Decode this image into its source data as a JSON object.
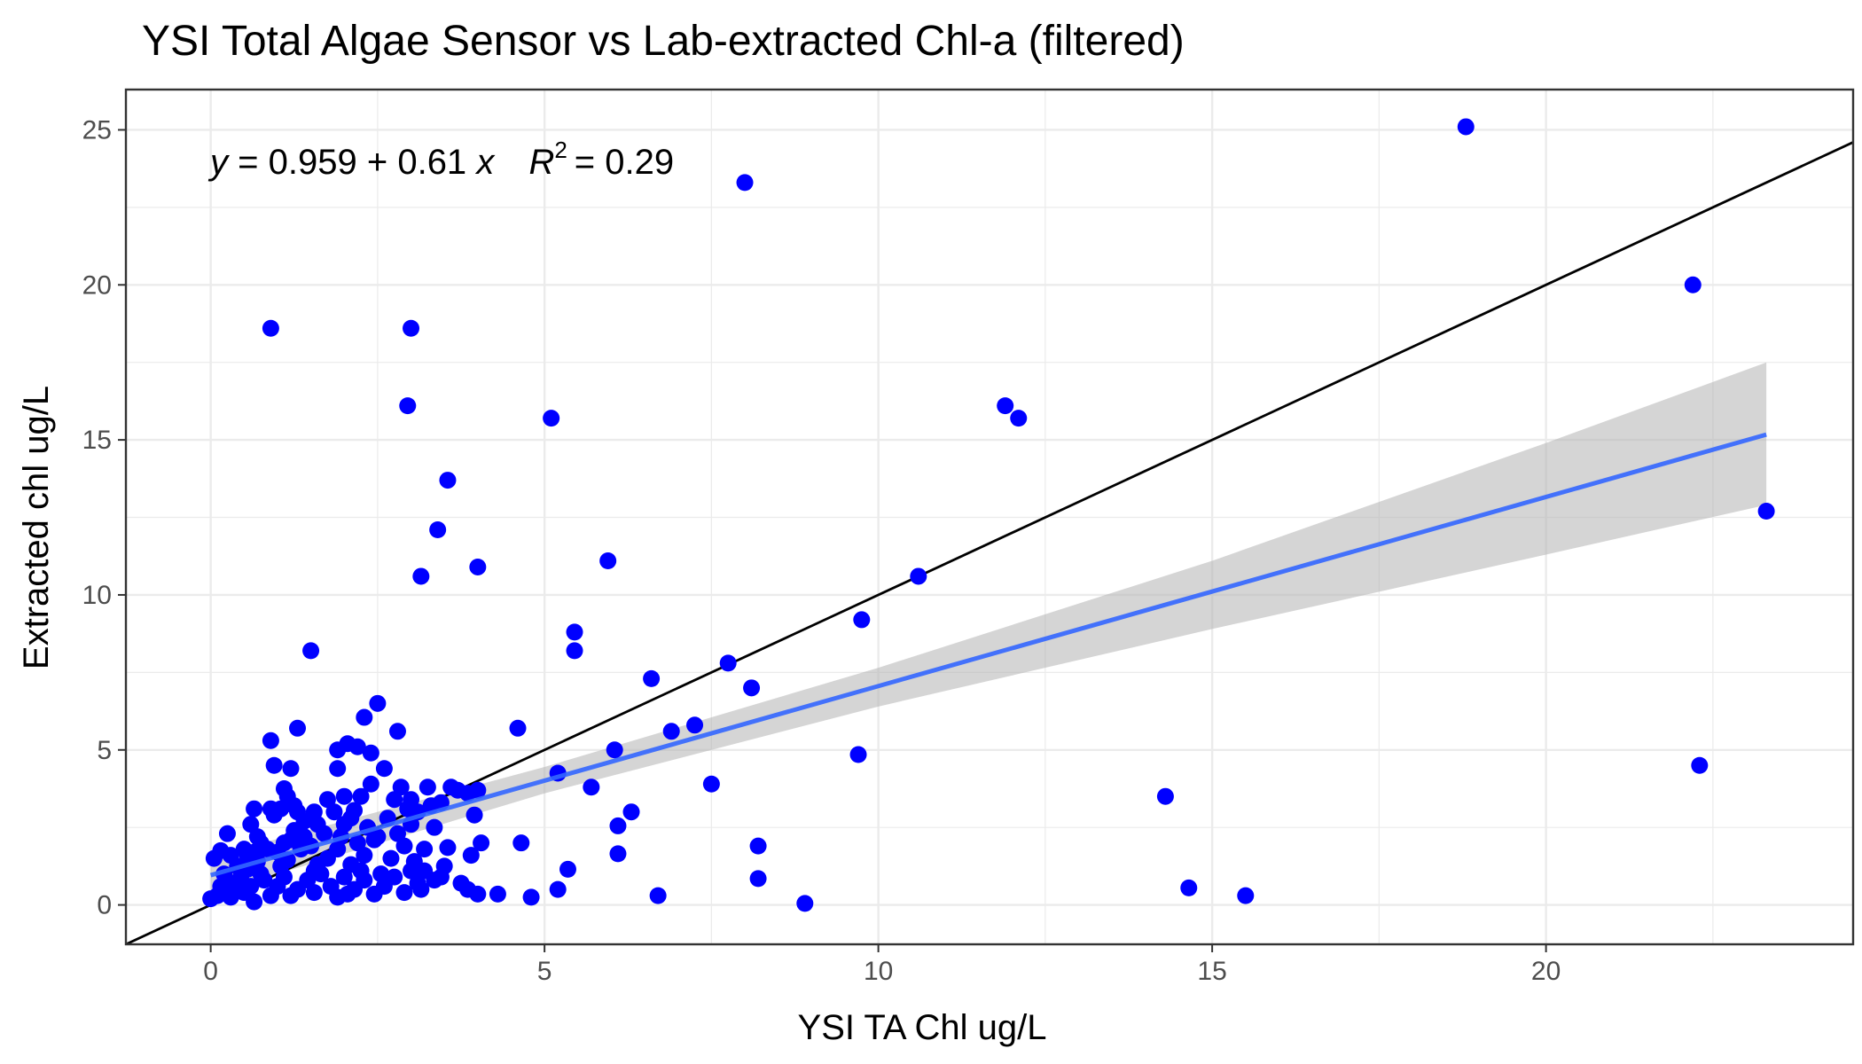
{
  "chart_data": {
    "type": "scatter",
    "title": "YSI Total Algae Sensor vs Lab-extracted Chl-a (filtered)",
    "xlabel": "YSI TA Chl ug/L",
    "ylabel": "Extracted chl ug/L",
    "xlim": [
      -1.27,
      24.6
    ],
    "ylim": [
      -1.27,
      26.3
    ],
    "x_ticks": [
      0,
      5,
      10,
      15,
      20
    ],
    "y_ticks": [
      0,
      5,
      10,
      15,
      20,
      25
    ],
    "x_tick_labels": [
      "0",
      "5",
      "10",
      "15",
      "20"
    ],
    "y_tick_labels": [
      "0",
      "5",
      "10",
      "15",
      "20",
      "25"
    ],
    "grid": true,
    "equation": {
      "y_var": "y",
      "eq_sign": "=",
      "intercept": "0.959",
      "plus": "+",
      "slope": "0.61",
      "x_var": "x",
      "r_var": "R",
      "r_sup": "2",
      "r_eq": "=",
      "r2": "0.29"
    },
    "fit_line": {
      "intercept": 0.959,
      "slope": 0.61,
      "x_range": [
        0,
        23.3
      ],
      "color": "#3366ff"
    },
    "confidence_band": {
      "x": [
        0,
        5,
        10,
        15,
        20,
        23.3
      ],
      "lower": [
        0.35,
        3.6,
        6.4,
        8.9,
        11.3,
        12.9
      ],
      "upper": [
        1.55,
        4.45,
        7.65,
        11.1,
        14.9,
        17.5
      ],
      "color": "#b3b3b3"
    },
    "identity_line": {
      "slope": 1,
      "intercept": 0,
      "color": "#000000"
    },
    "series": [
      {
        "color": "#0000ff",
        "points": [
          [
            0.9,
            18.6
          ],
          [
            3.0,
            18.6
          ],
          [
            2.95,
            16.1
          ],
          [
            3.55,
            13.7
          ],
          [
            3.4,
            12.1
          ],
          [
            3.15,
            10.6
          ],
          [
            4.0,
            10.9
          ],
          [
            1.5,
            8.2
          ],
          [
            5.1,
            15.7
          ],
          [
            5.95,
            11.1
          ],
          [
            8.0,
            23.3
          ],
          [
            18.8,
            25.1
          ],
          [
            22.2,
            20.0
          ],
          [
            11.9,
            16.1
          ],
          [
            12.1,
            15.7
          ],
          [
            23.3,
            12.7
          ],
          [
            10.6,
            10.6
          ],
          [
            9.75,
            9.2
          ],
          [
            5.45,
            8.8
          ],
          [
            5.45,
            8.2
          ],
          [
            7.75,
            7.8
          ],
          [
            6.6,
            7.3
          ],
          [
            8.1,
            7.0
          ],
          [
            7.25,
            5.8
          ],
          [
            6.9,
            5.6
          ],
          [
            4.6,
            5.7
          ],
          [
            6.05,
            5.0
          ],
          [
            9.7,
            4.85
          ],
          [
            22.3,
            4.5
          ],
          [
            14.3,
            3.5
          ],
          [
            7.5,
            3.9
          ],
          [
            5.7,
            3.8
          ],
          [
            5.2,
            4.25
          ],
          [
            6.3,
            3.0
          ],
          [
            6.1,
            2.55
          ],
          [
            6.1,
            1.65
          ],
          [
            8.2,
            1.9
          ],
          [
            8.2,
            0.85
          ],
          [
            14.65,
            0.55
          ],
          [
            15.5,
            0.3
          ],
          [
            8.9,
            0.05
          ],
          [
            6.7,
            0.3
          ],
          [
            5.35,
            1.15
          ],
          [
            5.2,
            0.5
          ],
          [
            4.8,
            0.25
          ],
          [
            4.65,
            2.0
          ],
          [
            4.3,
            0.35
          ],
          [
            4.0,
            0.35
          ],
          [
            3.85,
            0.5
          ],
          [
            4.05,
            2.0
          ],
          [
            3.9,
            1.6
          ],
          [
            3.55,
            1.85
          ],
          [
            3.5,
            1.25
          ],
          [
            3.75,
            0.7
          ],
          [
            3.45,
            0.9
          ],
          [
            3.35,
            0.8
          ],
          [
            3.1,
            0.7
          ],
          [
            3.2,
            1.1
          ],
          [
            3.6,
            3.8
          ],
          [
            3.3,
            3.2
          ],
          [
            3.25,
            3.8
          ],
          [
            3.0,
            3.4
          ],
          [
            2.85,
            3.8
          ],
          [
            2.6,
            4.4
          ],
          [
            2.4,
            3.9
          ],
          [
            2.25,
            3.5
          ],
          [
            2.15,
            3.05
          ],
          [
            2.0,
            3.5
          ],
          [
            2.4,
            4.9
          ],
          [
            2.5,
            6.5
          ],
          [
            2.3,
            6.05
          ],
          [
            2.8,
            5.6
          ],
          [
            2.05,
            5.2
          ],
          [
            1.9,
            5.0
          ],
          [
            2.2,
            5.1
          ],
          [
            1.9,
            4.4
          ],
          [
            1.3,
            5.7
          ],
          [
            1.75,
            3.4
          ],
          [
            1.55,
            3.0
          ],
          [
            1.25,
            3.2
          ],
          [
            1.15,
            3.5
          ],
          [
            1.1,
            3.75
          ],
          [
            1.2,
            4.4
          ],
          [
            1.05,
            3.1
          ],
          [
            0.9,
            3.1
          ],
          [
            0.9,
            5.3
          ],
          [
            0.95,
            4.5
          ],
          [
            0.65,
            3.1
          ],
          [
            0.7,
            2.2
          ],
          [
            0.25,
            2.3
          ],
          [
            0.15,
            1.75
          ],
          [
            0.05,
            1.5
          ],
          [
            0.2,
            1.0
          ],
          [
            0.25,
            0.55
          ],
          [
            0.3,
            0.25
          ],
          [
            0.1,
            0.3
          ],
          [
            0.0,
            0.2
          ],
          [
            0.5,
            0.4
          ],
          [
            0.65,
            0.1
          ],
          [
            0.4,
            1.25
          ],
          [
            0.55,
            1.6
          ],
          [
            0.7,
            1.4
          ],
          [
            0.85,
            1.8
          ],
          [
            1.0,
            1.7
          ],
          [
            1.15,
            1.45
          ],
          [
            1.1,
            2.0
          ],
          [
            1.25,
            2.4
          ],
          [
            1.4,
            2.2
          ],
          [
            1.5,
            1.9
          ],
          [
            1.6,
            2.6
          ],
          [
            1.75,
            1.5
          ],
          [
            1.9,
            1.8
          ],
          [
            2.0,
            2.6
          ],
          [
            2.1,
            1.3
          ],
          [
            2.2,
            2.0
          ],
          [
            2.3,
            1.6
          ],
          [
            2.45,
            2.1
          ],
          [
            2.55,
            1.0
          ],
          [
            2.7,
            1.5
          ],
          [
            2.8,
            2.3
          ],
          [
            2.9,
            1.9
          ],
          [
            3.0,
            2.6
          ],
          [
            3.05,
            1.4
          ],
          [
            0.8,
            0.8
          ],
          [
            0.9,
            0.3
          ],
          [
            1.0,
            0.6
          ],
          [
            1.1,
            0.9
          ],
          [
            1.2,
            0.3
          ],
          [
            1.3,
            0.5
          ],
          [
            1.45,
            0.8
          ],
          [
            1.55,
            0.4
          ],
          [
            1.65,
            1.0
          ],
          [
            1.8,
            0.6
          ],
          [
            1.9,
            0.25
          ],
          [
            2.0,
            0.9
          ],
          [
            2.15,
            0.5
          ],
          [
            2.3,
            0.8
          ],
          [
            2.45,
            0.35
          ],
          [
            2.6,
            0.6
          ],
          [
            2.75,
            0.9
          ],
          [
            2.9,
            0.4
          ],
          [
            3.0,
            1.1
          ],
          [
            3.15,
            0.5
          ],
          [
            0.35,
            0.7
          ],
          [
            0.45,
            0.9
          ],
          [
            0.6,
            0.6
          ],
          [
            0.75,
            1.0
          ],
          [
            0.5,
            1.8
          ],
          [
            0.65,
            1.7
          ],
          [
            1.85,
            3.0
          ],
          [
            2.65,
            2.8
          ],
          [
            2.95,
            3.1
          ],
          [
            3.35,
            2.5
          ],
          [
            3.7,
            3.7
          ],
          [
            3.95,
            2.9
          ],
          [
            3.85,
            3.6
          ],
          [
            3.45,
            3.3
          ],
          [
            4.0,
            3.7
          ],
          [
            2.75,
            3.4
          ],
          [
            1.4,
            2.7
          ],
          [
            1.55,
            1.1
          ],
          [
            2.35,
            2.5
          ],
          [
            1.7,
            2.3
          ],
          [
            0.6,
            2.6
          ],
          [
            0.95,
            2.9
          ],
          [
            1.3,
            3.0
          ],
          [
            2.1,
            2.8
          ],
          [
            1.2,
            2.1
          ],
          [
            1.05,
            1.25
          ],
          [
            0.55,
            1.15
          ],
          [
            0.3,
            1.6
          ],
          [
            0.75,
            2.0
          ],
          [
            1.6,
            1.3
          ],
          [
            2.25,
            1.1
          ],
          [
            2.5,
            2.2
          ],
          [
            3.2,
            1.8
          ],
          [
            3.1,
            3.0
          ],
          [
            2.05,
            0.35
          ],
          [
            1.35,
            1.8
          ],
          [
            1.95,
            2.2
          ],
          [
            0.15,
            0.6
          ]
        ]
      }
    ]
  }
}
